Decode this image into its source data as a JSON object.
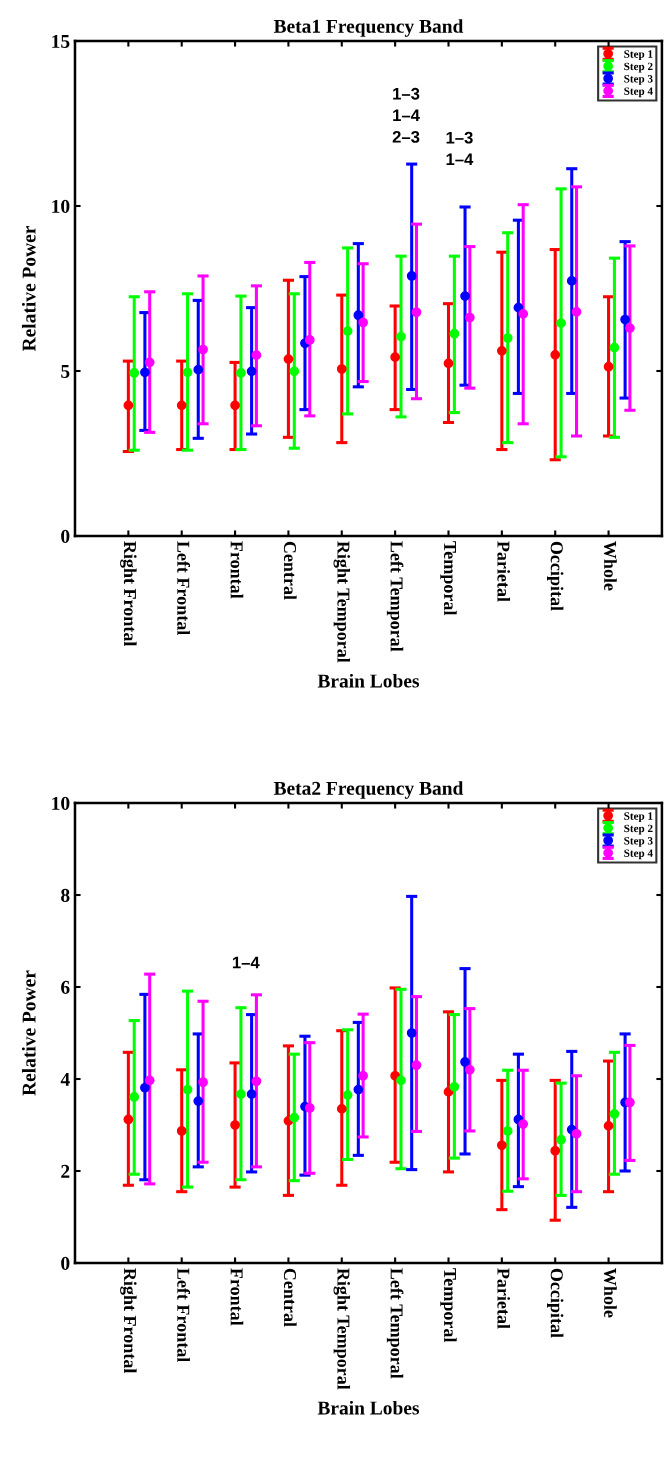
{
  "chart_data": [
    {
      "type": "scatter",
      "title": "Beta1 Frequency Band",
      "xlabel": "Brain Lobes",
      "ylabel": "Relative Power",
      "categories": [
        "Right Frontal",
        "Left Frontal",
        "Frontal",
        "Central",
        "Right Temporal",
        "Left Temporal",
        "Temporal",
        "Parietal",
        "Occipital",
        "Whole"
      ],
      "ylim": [
        0,
        15
      ],
      "yticks": [
        0,
        5,
        10,
        15
      ],
      "grid": false,
      "legend": "top right",
      "marker": "circle",
      "series": [
        {
          "name": "Step 1",
          "color": "#ff0000",
          "values": [
            3.96,
            3.96,
            3.96,
            5.36,
            5.06,
            5.42,
            5.23,
            5.61,
            5.49,
            5.13
          ],
          "errors": [
            [
              2.56,
              5.3
            ],
            [
              2.62,
              5.3
            ],
            [
              2.62,
              5.26
            ],
            [
              2.99,
              7.75
            ],
            [
              2.83,
              7.3
            ],
            [
              3.83,
              6.97
            ],
            [
              3.44,
              7.04
            ],
            [
              2.62,
              8.6
            ],
            [
              2.31,
              8.68
            ],
            [
              3.03,
              7.25
            ]
          ]
        },
        {
          "name": "Step 2",
          "color": "#00ff00",
          "values": [
            4.94,
            4.96,
            4.94,
            4.99,
            6.21,
            6.04,
            6.13,
            6.0,
            6.45,
            5.71
          ],
          "errors": [
            [
              2.6,
              7.25
            ],
            [
              2.6,
              7.34
            ],
            [
              2.62,
              7.27
            ],
            [
              2.66,
              7.34
            ],
            [
              3.7,
              8.73
            ],
            [
              3.61,
              8.48
            ],
            [
              3.74,
              8.48
            ],
            [
              2.83,
              9.19
            ],
            [
              2.4,
              10.52
            ],
            [
              2.99,
              8.42
            ]
          ]
        },
        {
          "name": "Step 3",
          "color": "#0000ff",
          "values": [
            4.96,
            5.04,
            4.99,
            5.84,
            6.69,
            7.88,
            7.27,
            6.92,
            7.73,
            6.56
          ],
          "errors": [
            [
              3.2,
              6.77
            ],
            [
              2.96,
              7.14
            ],
            [
              3.09,
              6.92
            ],
            [
              3.83,
              7.86
            ],
            [
              4.52,
              8.86
            ],
            [
              4.44,
              11.27
            ],
            [
              4.57,
              9.97
            ],
            [
              4.32,
              9.57
            ],
            [
              4.32,
              11.13
            ],
            [
              4.18,
              8.92
            ]
          ]
        },
        {
          "name": "Step 4",
          "color": "#ff00ff",
          "values": [
            5.26,
            5.65,
            5.48,
            5.94,
            6.47,
            6.78,
            6.62,
            6.73,
            6.79,
            6.3
          ],
          "errors": [
            [
              3.14,
              7.4
            ],
            [
              3.4,
              7.88
            ],
            [
              3.34,
              7.58
            ],
            [
              3.64,
              8.29
            ],
            [
              4.68,
              8.25
            ],
            [
              4.16,
              9.45
            ],
            [
              4.48,
              8.77
            ],
            [
              3.4,
              10.04
            ],
            [
              3.03,
              10.58
            ],
            [
              3.81,
              8.79
            ]
          ]
        }
      ],
      "annotations": [
        "1–3\n1–4\n2–3",
        "1–3\n1–4"
      ]
    },
    {
      "type": "scatter",
      "title": "Beta2 Frequency Band",
      "xlabel": "Brain Lobes",
      "ylabel": "Relative Power",
      "categories": [
        "Right Frontal",
        "Left Frontal",
        "Frontal",
        "Central",
        "Right Temporal",
        "Left Temporal",
        "Temporal",
        "Parietal",
        "Occipital",
        "Whole"
      ],
      "ylim": [
        0,
        10
      ],
      "yticks": [
        0,
        2,
        4,
        6,
        8,
        10
      ],
      "grid": false,
      "legend": "top right",
      "marker": "circle",
      "series": [
        {
          "name": "Step 1",
          "color": "#ff0000",
          "values": [
            3.12,
            2.87,
            3.0,
            3.09,
            3.35,
            4.07,
            3.72,
            2.56,
            2.44,
            2.98
          ],
          "errors": [
            [
              1.69,
              4.58
            ],
            [
              1.55,
              4.2
            ],
            [
              1.65,
              4.35
            ],
            [
              1.47,
              4.72
            ],
            [
              1.69,
              5.05
            ],
            [
              2.19,
              5.98
            ],
            [
              1.98,
              5.46
            ],
            [
              1.16,
              3.97
            ],
            [
              0.93,
              3.97
            ],
            [
              1.55,
              4.39
            ]
          ]
        },
        {
          "name": "Step 2",
          "color": "#00ff00",
          "values": [
            3.61,
            3.77,
            3.67,
            3.16,
            3.65,
            3.97,
            3.83,
            2.87,
            2.68,
            3.24
          ],
          "errors": [
            [
              1.93,
              5.27
            ],
            [
              1.65,
              5.91
            ],
            [
              1.81,
              5.55
            ],
            [
              1.79,
              4.54
            ],
            [
              2.25,
              5.07
            ],
            [
              2.05,
              5.95
            ],
            [
              2.28,
              5.4
            ],
            [
              1.56,
              4.19
            ],
            [
              1.47,
              3.91
            ],
            [
              1.93,
              4.58
            ]
          ]
        },
        {
          "name": "Step 3",
          "color": "#0000ff",
          "values": [
            3.81,
            3.52,
            3.67,
            3.4,
            3.77,
            5.0,
            4.37,
            3.12,
            2.9,
            3.49
          ],
          "errors": [
            [
              1.81,
              5.84
            ],
            [
              2.09,
              4.98
            ],
            [
              1.98,
              5.4
            ],
            [
              1.91,
              4.93
            ],
            [
              2.34,
              5.23
            ],
            [
              2.03,
              7.97
            ],
            [
              2.37,
              6.4
            ],
            [
              1.66,
              4.54
            ],
            [
              1.21,
              4.6
            ],
            [
              2.0,
              4.98
            ]
          ]
        },
        {
          "name": "Step 4",
          "color": "#ff00ff",
          "values": [
            3.97,
            3.93,
            3.95,
            3.37,
            4.07,
            4.3,
            4.2,
            3.02,
            2.81,
            3.49
          ],
          "errors": [
            [
              1.72,
              6.28
            ],
            [
              2.19,
              5.69
            ],
            [
              2.09,
              5.83
            ],
            [
              1.95,
              4.79
            ],
            [
              2.74,
              5.41
            ],
            [
              2.86,
              5.79
            ],
            [
              2.87,
              5.53
            ],
            [
              1.83,
              4.19
            ],
            [
              1.55,
              4.07
            ],
            [
              2.23,
              4.73
            ]
          ]
        }
      ],
      "annotations": [
        "1–4"
      ]
    }
  ]
}
